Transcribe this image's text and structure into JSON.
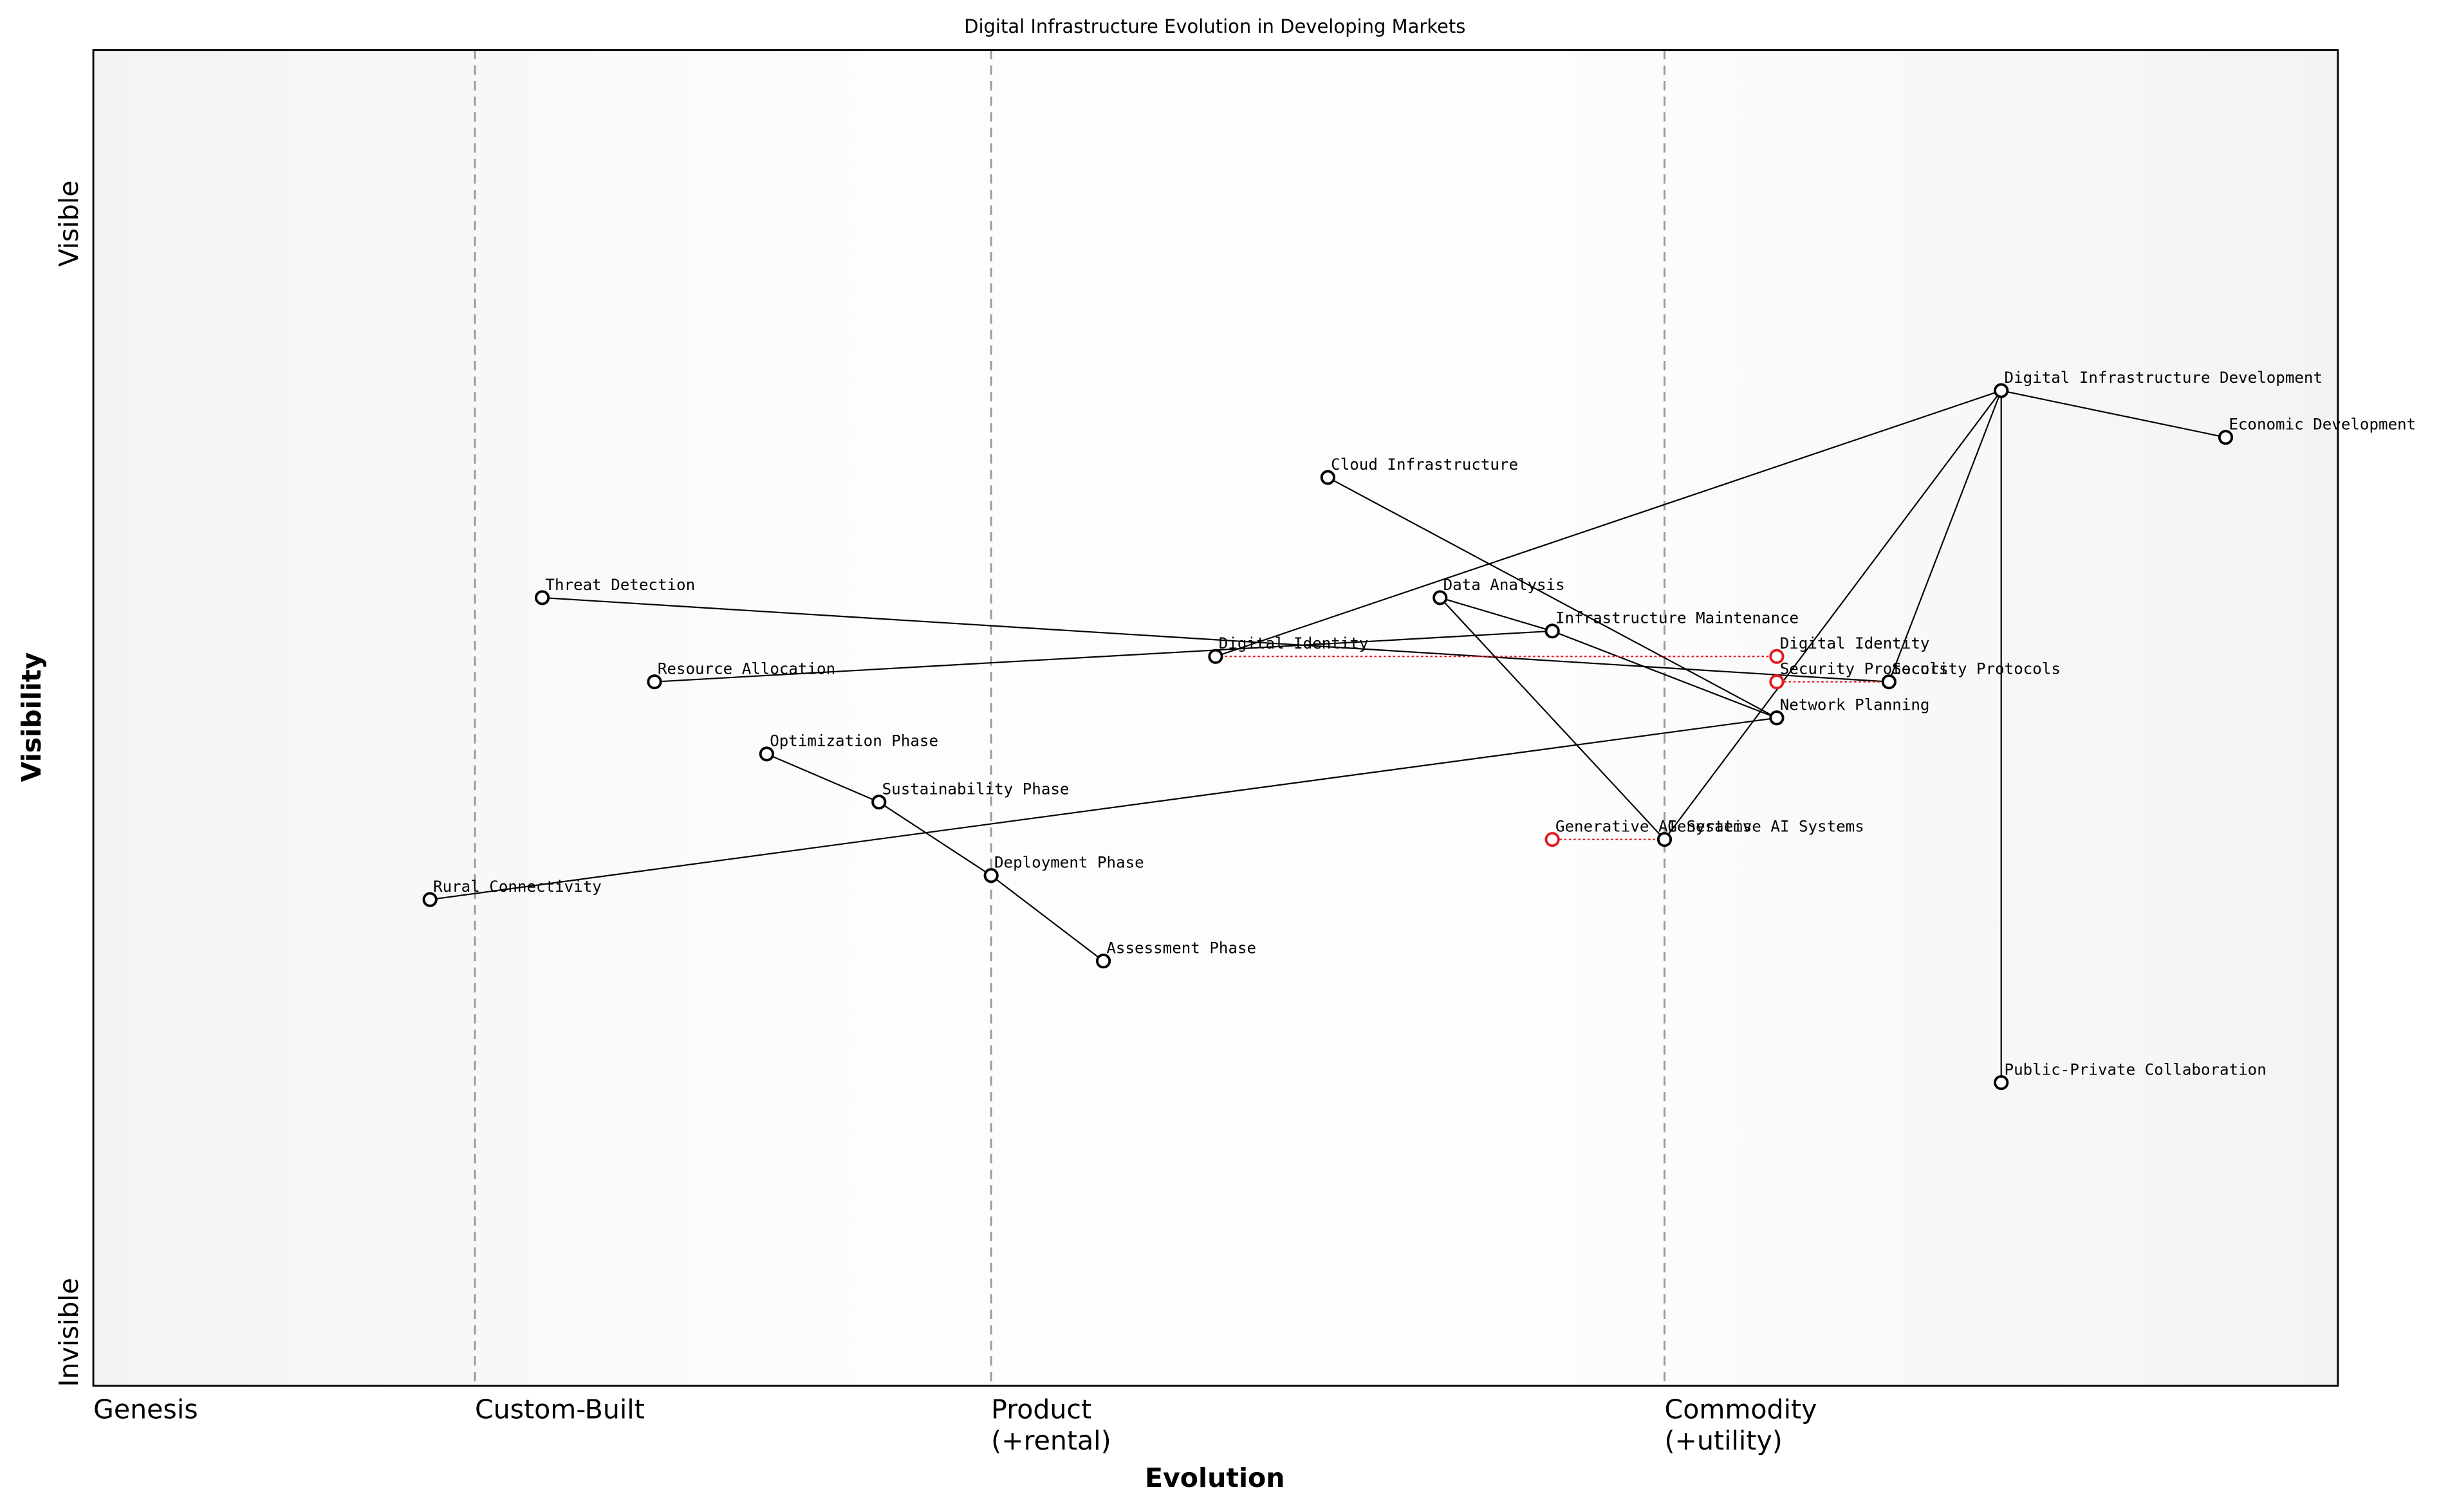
{
  "chart_data": {
    "type": "wardley",
    "title": "Digital Infrastructure Evolution in Developing Markets",
    "xlabel": "Evolution",
    "ylabel": "Visibility",
    "xlim": [
      0,
      1
    ],
    "ylim": [
      0,
      1
    ],
    "xticks": [
      {
        "value": 0,
        "label": "Genesis"
      },
      {
        "value": 0.17,
        "label": "Custom-Built"
      },
      {
        "value": 0.4,
        "label": "Product\n(+rental)"
      },
      {
        "value": 0.7,
        "label": "Commodity\n(+utility)"
      }
    ],
    "yticks": [
      {
        "value": 0.04,
        "label": "Invisible"
      },
      {
        "value": 0.87,
        "label": "Visible"
      }
    ],
    "grid_x": true,
    "node_color": "#000000",
    "evolution_color": "#e31a1c",
    "nodes": [
      {
        "name": "Digital Infrastructure Development",
        "x": 0.85,
        "y": 0.745
      },
      {
        "name": "Economic Development",
        "x": 0.95,
        "y": 0.71
      },
      {
        "name": "Cloud Infrastructure",
        "x": 0.55,
        "y": 0.68
      },
      {
        "name": "Threat Detection",
        "x": 0.2,
        "y": 0.59
      },
      {
        "name": "Data Analysis",
        "x": 0.6,
        "y": 0.59
      },
      {
        "name": "Infrastructure Maintenance",
        "x": 0.65,
        "y": 0.565
      },
      {
        "name": "Digital Identity",
        "x": 0.5,
        "y": 0.546
      },
      {
        "name": "Resource Allocation",
        "x": 0.25,
        "y": 0.527
      },
      {
        "name": "Security Protocols",
        "x": 0.8,
        "y": 0.527
      },
      {
        "name": "Network Planning",
        "x": 0.75,
        "y": 0.5
      },
      {
        "name": "Optimization Phase",
        "x": 0.3,
        "y": 0.473
      },
      {
        "name": "Sustainability Phase",
        "x": 0.35,
        "y": 0.437
      },
      {
        "name": "Generative AI Systems",
        "x": 0.7,
        "y": 0.409
      },
      {
        "name": "Deployment Phase",
        "x": 0.4,
        "y": 0.382
      },
      {
        "name": "Rural Connectivity",
        "x": 0.15,
        "y": 0.364
      },
      {
        "name": "Assessment Phase",
        "x": 0.45,
        "y": 0.318
      },
      {
        "name": "Public-Private Collaboration",
        "x": 0.85,
        "y": 0.227
      }
    ],
    "links": [
      [
        "Digital Infrastructure Development",
        "Economic Development"
      ],
      [
        "Digital Infrastructure Development",
        "Digital Identity"
      ],
      [
        "Digital Infrastructure Development",
        "Generative AI Systems"
      ],
      [
        "Digital Infrastructure Development",
        "Security Protocols"
      ],
      [
        "Digital Infrastructure Development",
        "Public-Private Collaboration"
      ],
      [
        "Cloud Infrastructure",
        "Network Planning"
      ],
      [
        "Infrastructure Maintenance",
        "Network Planning"
      ],
      [
        "Data Analysis",
        "Infrastructure Maintenance"
      ],
      [
        "Data Analysis",
        "Generative AI Systems"
      ],
      [
        "Threat Detection",
        "Security Protocols"
      ],
      [
        "Resource Allocation",
        "Infrastructure Maintenance"
      ],
      [
        "Optimization Phase",
        "Sustainability Phase"
      ],
      [
        "Sustainability Phase",
        "Deployment Phase"
      ],
      [
        "Deployment Phase",
        "Assessment Phase"
      ],
      [
        "Rural Connectivity",
        "Network Planning"
      ]
    ],
    "evolutions": [
      {
        "name": "Digital Identity",
        "x": 0.75
      },
      {
        "name": "Security Protocols",
        "x": 0.75
      },
      {
        "name": "Generative AI Systems",
        "x": 0.65
      }
    ]
  }
}
